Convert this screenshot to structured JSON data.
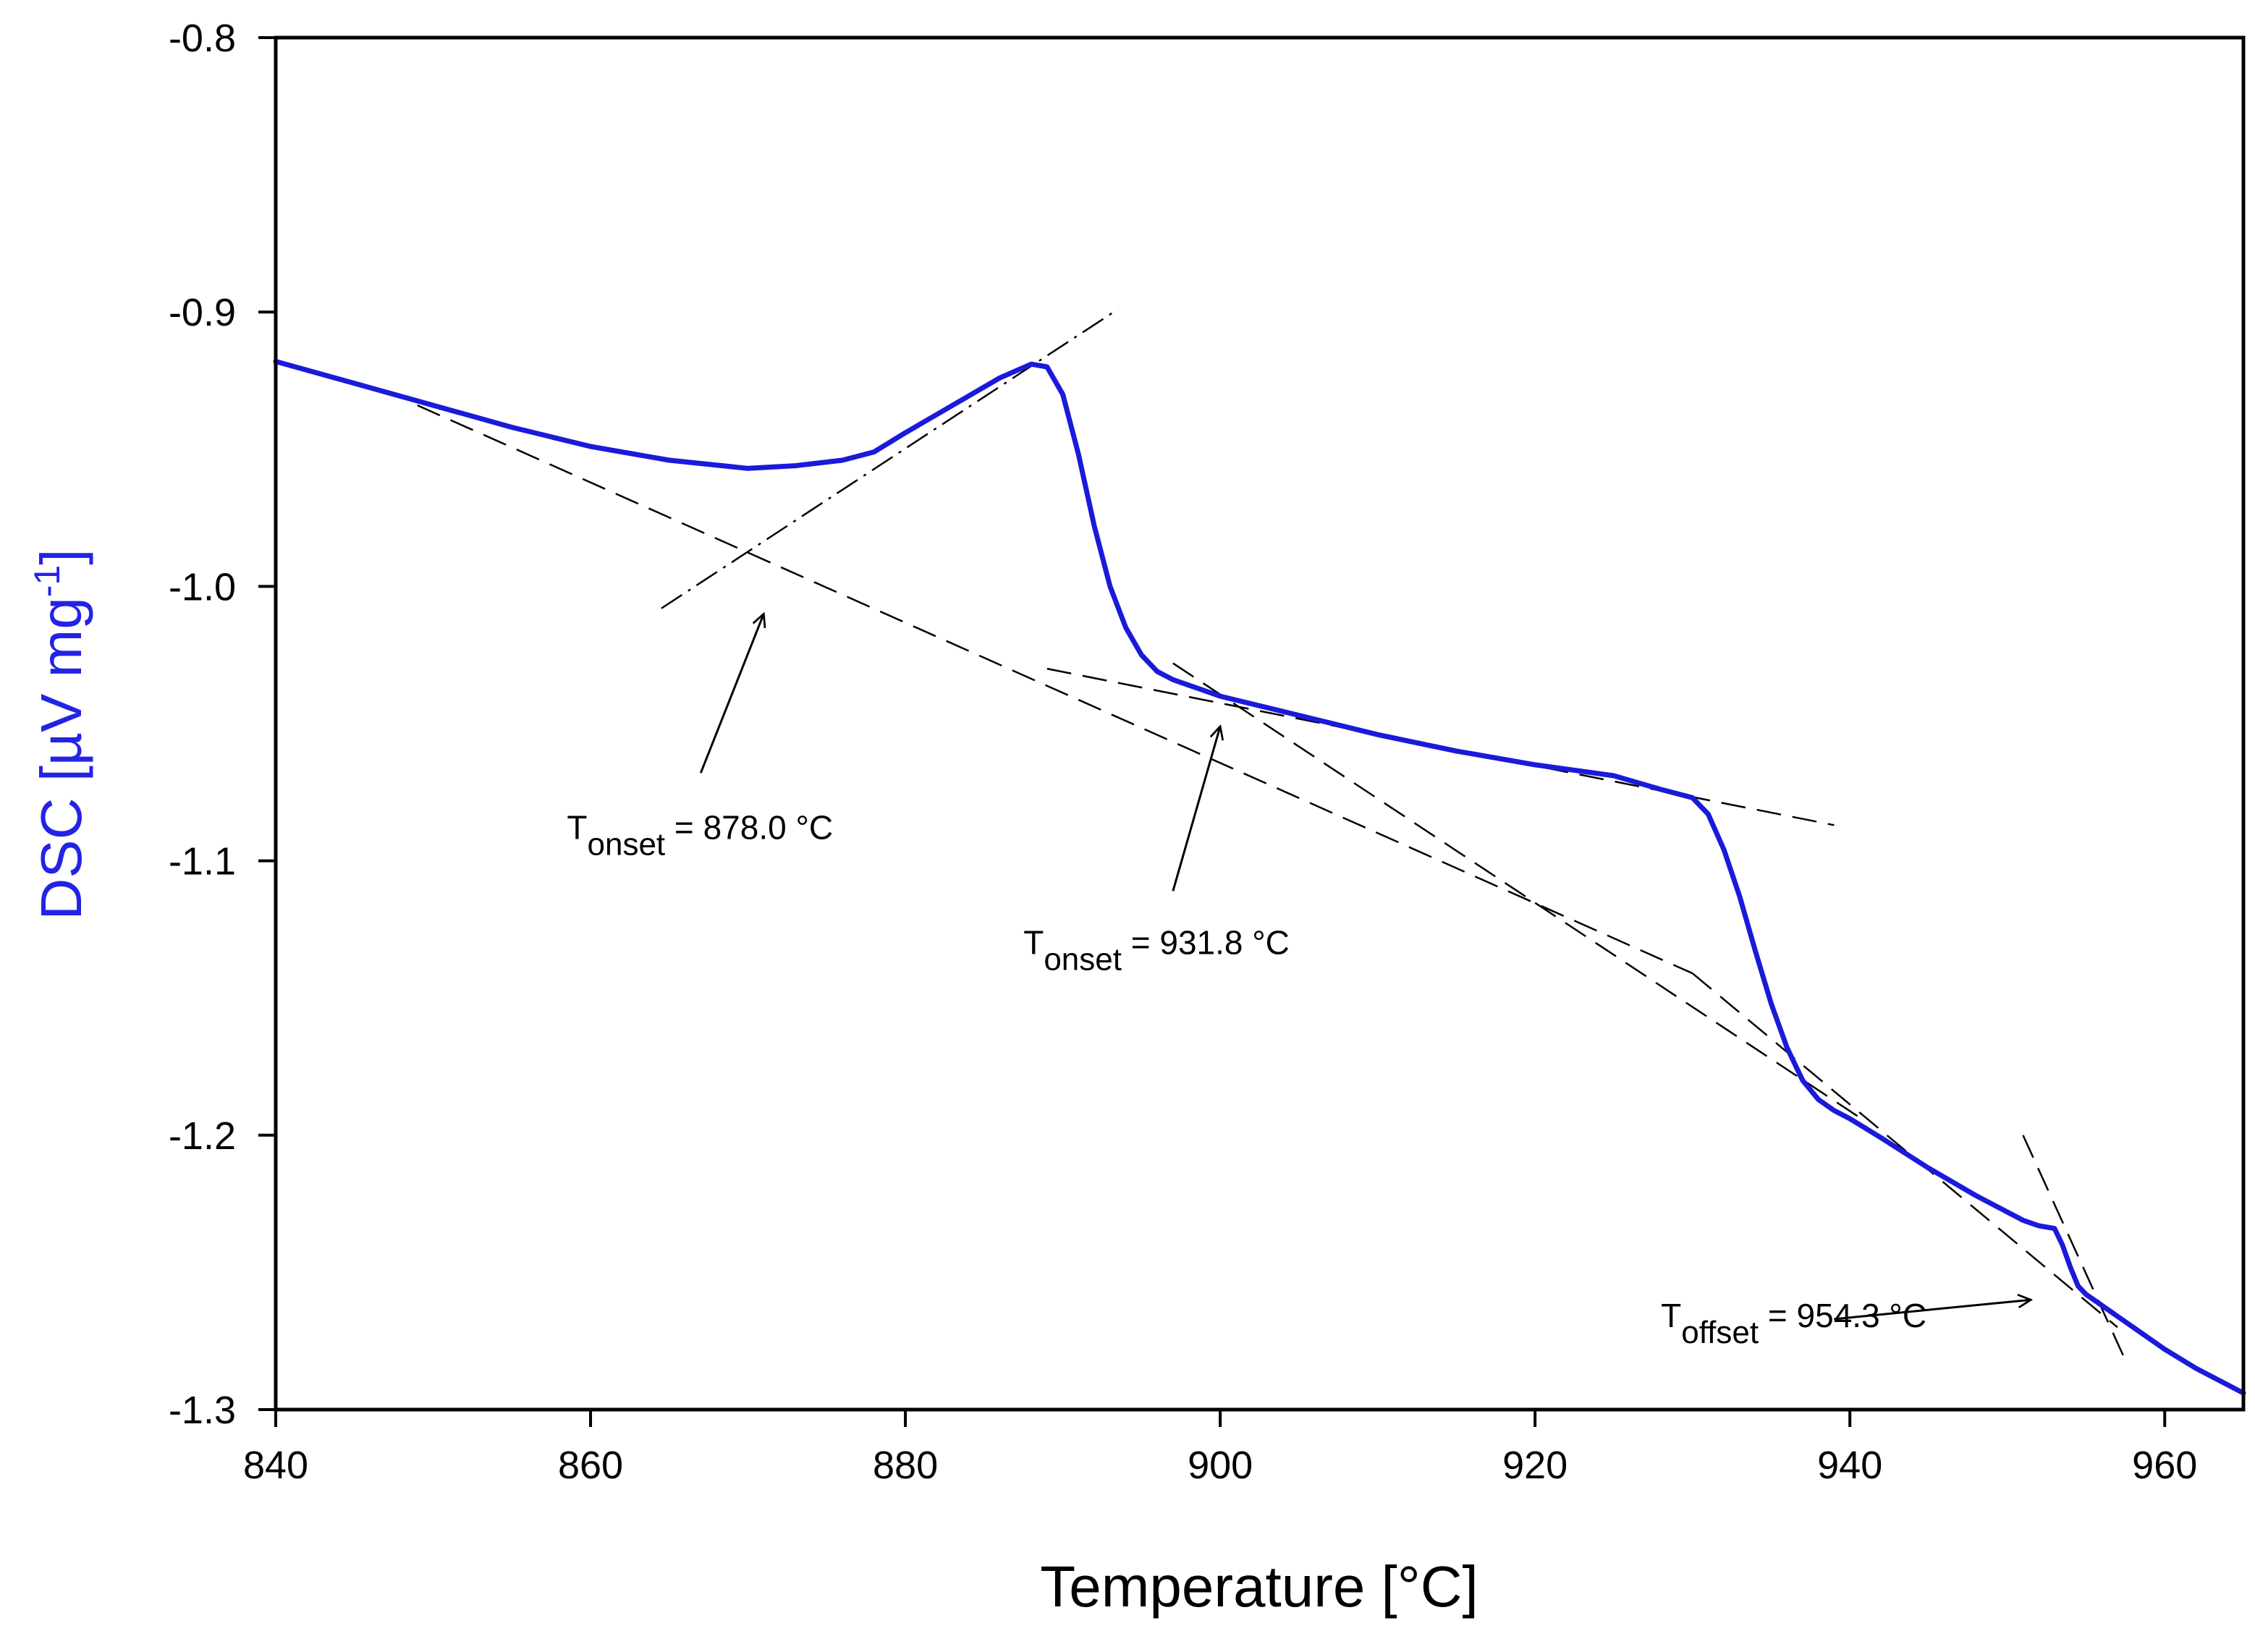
{
  "chart_data": {
    "type": "line",
    "title": "",
    "xlabel": "Temperature [°C]",
    "ylabel": {
      "main": "DSC [µV mg",
      "sup": "-1",
      "end": "]"
    },
    "xlim": [
      840,
      965
    ],
    "ylim": [
      -1.3,
      -0.8
    ],
    "x_ticks": [
      840,
      860,
      880,
      900,
      920,
      940,
      960
    ],
    "y_ticks": [
      -0.8,
      -0.9,
      -1.0,
      -1.1,
      -1.2,
      -1.3
    ],
    "x_tick_labels": [
      "840",
      "860",
      "880",
      "900",
      "920",
      "940",
      "960"
    ],
    "y_tick_labels": [
      "-0.8",
      "-0.9",
      "-1.0",
      "-1.1",
      "-1.2",
      "-1.3"
    ],
    "grid": false,
    "series": [
      {
        "name": "DSC",
        "color": "#1a1adb",
        "x": [
          840,
          845,
          850,
          855,
          860,
          865,
          870,
          873,
          876,
          878,
          880,
          883,
          886,
          888,
          889,
          890,
          891,
          892,
          893,
          894,
          895,
          896,
          897,
          898,
          900,
          905,
          910,
          915,
          920,
          925,
          928,
          930,
          931,
          932,
          933,
          934,
          935,
          936,
          937,
          938,
          939,
          940,
          942,
          945,
          948,
          951,
          952,
          953,
          953.5,
          954,
          954.5,
          955,
          956,
          958,
          960,
          962,
          965
        ],
        "y": [
          -0.918,
          -0.926,
          -0.934,
          -0.942,
          -0.949,
          -0.954,
          -0.957,
          -0.956,
          -0.954,
          -0.951,
          -0.944,
          -0.934,
          -0.924,
          -0.919,
          -0.92,
          -0.93,
          -0.952,
          -0.978,
          -1.0,
          -1.015,
          -1.025,
          -1.031,
          -1.034,
          -1.036,
          -1.04,
          -1.047,
          -1.054,
          -1.06,
          -1.065,
          -1.069,
          -1.074,
          -1.077,
          -1.083,
          -1.096,
          -1.113,
          -1.133,
          -1.152,
          -1.168,
          -1.18,
          -1.187,
          -1.191,
          -1.194,
          -1.201,
          -1.212,
          -1.222,
          -1.231,
          -1.233,
          -1.234,
          -1.24,
          -1.248,
          -1.255,
          -1.258,
          -1.262,
          -1.27,
          -1.278,
          -1.285,
          -1.294
        ]
      }
    ],
    "tangent_lines": [
      {
        "name": "baseline-1",
        "dash": "long",
        "x": [
          849,
          930
        ],
        "y": [
          -0.934,
          -1.141
        ]
      },
      {
        "name": "leading-edge-1",
        "dash": "dash-dot",
        "x": [
          864.5,
          893.5
        ],
        "y": [
          -1.008,
          -0.899
        ]
      },
      {
        "name": "baseline-2",
        "dash": "long",
        "x": [
          889,
          939
        ],
        "y": [
          -1.03,
          -1.087
        ]
      },
      {
        "name": "leading-edge-2",
        "dash": "long",
        "x": [
          897,
          941
        ],
        "y": [
          -1.028,
          -1.195
        ]
      },
      {
        "name": "baseline-3",
        "dash": "long",
        "x": [
          930,
          957
        ],
        "y": [
          -1.141,
          -1.27
        ]
      },
      {
        "name": "trailing-edge-3",
        "dash": "long",
        "x": [
          951,
          957.5
        ],
        "y": [
          -1.2,
          -1.282
        ]
      }
    ],
    "annotations": [
      {
        "name": "onset-1",
        "symbol": "T",
        "sub": "onset",
        "text": " = 878.0 °C",
        "label_x": 858.5,
        "label_y": -1.092,
        "arrow_from": [
          867,
          -1.068
        ],
        "arrow_to": [
          871,
          -1.01
        ]
      },
      {
        "name": "onset-2",
        "symbol": "T",
        "sub": "onset",
        "text": " = 931.8 °C",
        "label_x": 887.5,
        "label_y": -1.134,
        "arrow_from": [
          897,
          -1.111
        ],
        "arrow_to": [
          900,
          -1.051
        ]
      },
      {
        "name": "offset-3",
        "symbol": "T",
        "sub": "offset",
        "text": " = 954.3 °C",
        "label_x": 928,
        "label_y": -1.27,
        "arrow_from": [
          939,
          -1.267
        ],
        "arrow_to": [
          951.5,
          -1.26
        ]
      }
    ]
  }
}
